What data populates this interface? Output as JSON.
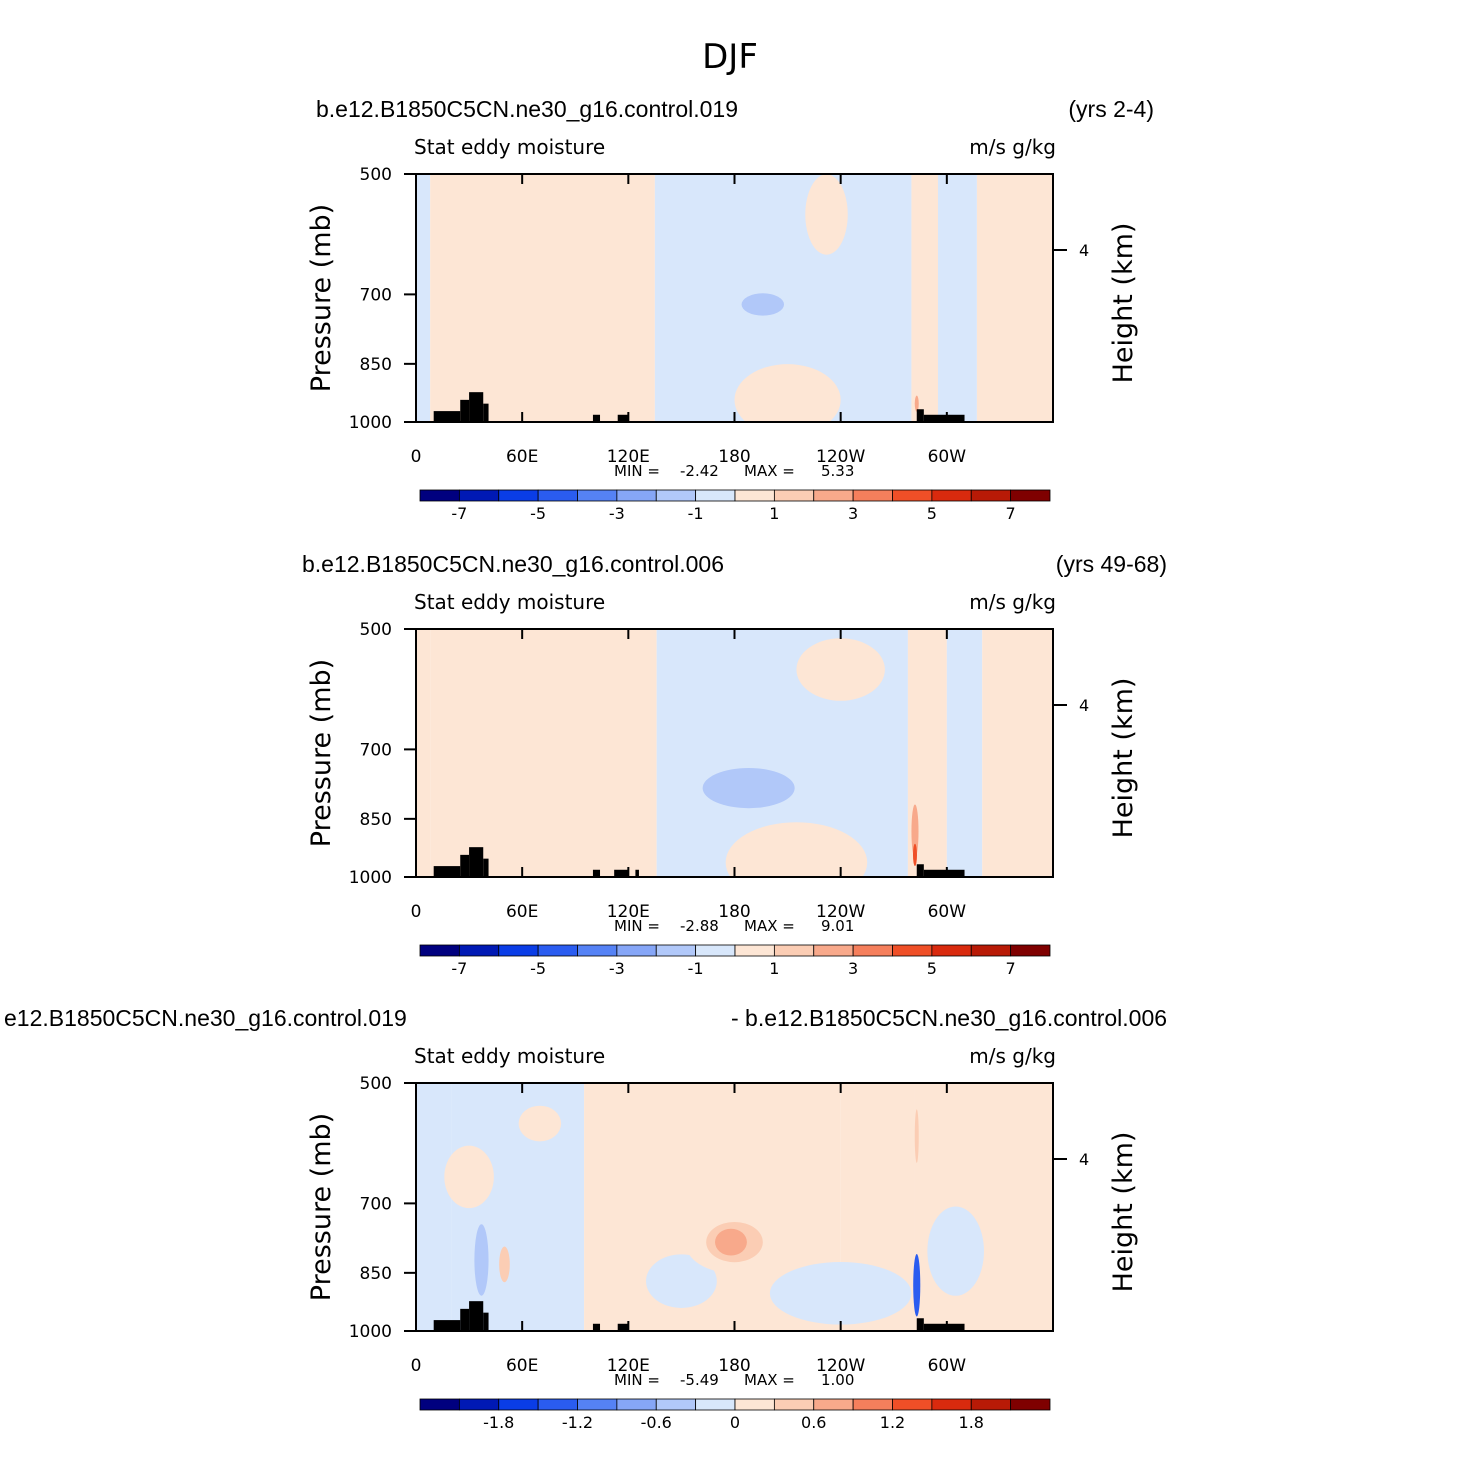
{
  "figure_title": "DJF",
  "colors": {
    "neg": [
      "#00007f",
      "#0019b4",
      "#0a3de6",
      "#2a5cf0",
      "#5582f5",
      "#86a6f7",
      "#b1c8f9",
      "#d8e7fb"
    ],
    "pos": [
      "#fde6d5",
      "#fbcdb4",
      "#f8a98b",
      "#f57f5c",
      "#ef4f27",
      "#d92a0e",
      "#b81a06",
      "#7f0000"
    ],
    "topography": "#000000"
  },
  "chart_data": [
    {
      "type": "heatmap",
      "title": "b.e12.B1850C5CN.ne30_g16.control.019",
      "years": "(yrs 2-4)",
      "variable": "Stat eddy moisture",
      "units": "m/s g/kg",
      "ylabel": "Pressure (mb)",
      "ylabel_right": "Height (km)",
      "y_ticks": [
        "500",
        "700",
        "850",
        "1000"
      ],
      "y_right_ticks": [
        "4"
      ],
      "x_ticks": [
        "0",
        "60E",
        "120E",
        "180",
        "120W",
        "60W"
      ],
      "xlim": [
        0,
        360
      ],
      "ylim": [
        1000,
        500
      ],
      "stats_min_label": "MIN =",
      "stats_min": "-2.42",
      "stats_max_label": "MAX =",
      "stats_max": "5.33",
      "colorbar_labels": [
        "-7",
        "-5",
        "-3",
        "-1",
        "1",
        "3",
        "5",
        "7"
      ],
      "field_levels_lon_to_lon": "estimated",
      "blobs": [
        {
          "lon": 28,
          "p": 700,
          "dlon": 3,
          "dp": 40,
          "level": 1
        },
        {
          "lon": 47,
          "p": 760,
          "dlon": 3,
          "dp": 60,
          "level": 1
        },
        {
          "lon": 196,
          "p": 720,
          "dlon": 12,
          "dp": 25,
          "level": -2
        },
        {
          "lon": 283,
          "p": 950,
          "dlon": 1,
          "dp": 18,
          "level": 3
        }
      ],
      "bands": [
        {
          "lon0": 0,
          "lon1": 8,
          "level": -1
        },
        {
          "lon0": 8,
          "lon1": 135,
          "level": 1
        },
        {
          "lon0": 135,
          "lon1": 280,
          "level": -1
        },
        {
          "lon0": 280,
          "lon1": 295,
          "level": 1
        },
        {
          "lon0": 295,
          "lon1": 317,
          "level": -1
        },
        {
          "lon0": 317,
          "lon1": 360,
          "level": 1
        }
      ],
      "lobes": [
        {
          "lon": 210,
          "p": 940,
          "dlon": 30,
          "dp": 80,
          "level": 1
        },
        {
          "lon": 232,
          "p": 560,
          "dlon": 12,
          "dp": 90,
          "level": 1
        }
      ],
      "topo": [
        {
          "lon0": 10,
          "lon1": 25,
          "p_top": 970
        },
        {
          "lon0": 25,
          "lon1": 30,
          "p_top": 940
        },
        {
          "lon0": 30,
          "lon1": 38,
          "p_top": 920
        },
        {
          "lon0": 38,
          "lon1": 41,
          "p_top": 950
        },
        {
          "lon0": 100,
          "lon1": 104,
          "p_top": 980
        },
        {
          "lon0": 114,
          "lon1": 120,
          "p_top": 980
        },
        {
          "lon0": 283,
          "lon1": 287,
          "p_top": 965
        },
        {
          "lon0": 287,
          "lon1": 310,
          "p_top": 980
        }
      ]
    },
    {
      "type": "heatmap",
      "title": "b.e12.B1850C5CN.ne30_g16.control.006",
      "years": "(yrs 49-68)",
      "variable": "Stat eddy moisture",
      "units": "m/s g/kg",
      "ylabel": "Pressure (mb)",
      "ylabel_right": "Height (km)",
      "y_ticks": [
        "500",
        "700",
        "850",
        "1000"
      ],
      "y_right_ticks": [
        "4"
      ],
      "x_ticks": [
        "0",
        "60E",
        "120E",
        "180",
        "120W",
        "60W"
      ],
      "xlim": [
        0,
        360
      ],
      "ylim": [
        1000,
        500
      ],
      "stats_min_label": "MIN =",
      "stats_min": "-2.88",
      "stats_max_label": "MAX =",
      "stats_max": "9.01",
      "colorbar_labels": [
        "-7",
        "-5",
        "-3",
        "-1",
        "1",
        "3",
        "5",
        "7"
      ],
      "field_levels_lon_to_lon": "estimated",
      "blobs": [
        {
          "lon": 25,
          "p": 760,
          "dlon": 3,
          "dp": 50,
          "level": 1
        },
        {
          "lon": 45,
          "p": 800,
          "dlon": 3,
          "dp": 70,
          "level": 1
        },
        {
          "lon": 188,
          "p": 780,
          "dlon": 26,
          "dp": 45,
          "level": -2
        },
        {
          "lon": 282,
          "p": 880,
          "dlon": 2,
          "dp": 60,
          "level": 3
        },
        {
          "lon": 282,
          "p": 940,
          "dlon": 1,
          "dp": 25,
          "level": 5
        }
      ],
      "bands": [
        {
          "lon0": 0,
          "lon1": 8,
          "level": 1
        },
        {
          "lon0": 8,
          "lon1": 136,
          "level": 1
        },
        {
          "lon0": 136,
          "lon1": 278,
          "level": -1
        },
        {
          "lon0": 278,
          "lon1": 300,
          "level": 1
        },
        {
          "lon0": 300,
          "lon1": 320,
          "level": -1
        },
        {
          "lon0": 320,
          "lon1": 360,
          "level": 1
        }
      ],
      "lobes": [
        {
          "lon": 215,
          "p": 960,
          "dlon": 40,
          "dp": 90,
          "level": 1
        },
        {
          "lon": 240,
          "p": 560,
          "dlon": 25,
          "dp": 70,
          "level": 1
        },
        {
          "lon": 340,
          "p": 580,
          "dlon": 14,
          "dp": 80,
          "level": 1
        }
      ],
      "topo": [
        {
          "lon0": 10,
          "lon1": 25,
          "p_top": 970
        },
        {
          "lon0": 25,
          "lon1": 30,
          "p_top": 940
        },
        {
          "lon0": 30,
          "lon1": 38,
          "p_top": 920
        },
        {
          "lon0": 38,
          "lon1": 41,
          "p_top": 950
        },
        {
          "lon0": 100,
          "lon1": 104,
          "p_top": 980
        },
        {
          "lon0": 112,
          "lon1": 120,
          "p_top": 980
        },
        {
          "lon0": 124,
          "lon1": 126,
          "p_top": 980
        },
        {
          "lon0": 283,
          "lon1": 287,
          "p_top": 965
        },
        {
          "lon0": 287,
          "lon1": 310,
          "p_top": 980
        }
      ]
    },
    {
      "type": "heatmap",
      "title": "e12.B1850C5CN.ne30_g16.control.019",
      "years": "- b.e12.B1850C5CN.ne30_g16.control.006",
      "variable": "Stat eddy moisture",
      "units": "m/s g/kg",
      "ylabel": "Pressure (mb)",
      "ylabel_right": "Height (km)",
      "y_ticks": [
        "500",
        "700",
        "850",
        "1000"
      ],
      "y_right_ticks": [
        "4"
      ],
      "x_ticks": [
        "0",
        "60E",
        "120E",
        "180",
        "120W",
        "60W"
      ],
      "xlim": [
        0,
        360
      ],
      "ylim": [
        1000,
        500
      ],
      "stats_min_label": "MIN =",
      "stats_min": "-5.49",
      "stats_max_label": "MAX =",
      "stats_max": "1.00",
      "colorbar_labels": [
        "-1.8",
        "-1.2",
        "-0.6",
        "0",
        "0.6",
        "1.2",
        "1.8"
      ],
      "field_levels_lon_to_lon": "estimated",
      "blobs": [
        {
          "lon": 180,
          "p": 780,
          "dlon": 28,
          "dp": 70,
          "level": 1
        },
        {
          "lon": 180,
          "p": 780,
          "dlon": 16,
          "dp": 45,
          "level": 2
        },
        {
          "lon": 178,
          "p": 780,
          "dlon": 9,
          "dp": 30,
          "level": 3
        },
        {
          "lon": 188,
          "p": 640,
          "dlon": 6,
          "dp": 60,
          "level": 1
        },
        {
          "lon": 37,
          "p": 820,
          "dlon": 4,
          "dp": 80,
          "level": -2
        },
        {
          "lon": 50,
          "p": 830,
          "dlon": 3,
          "dp": 40,
          "level": 2
        },
        {
          "lon": 283,
          "p": 880,
          "dlon": 2,
          "dp": 70,
          "level": -5
        },
        {
          "lon": 283,
          "p": 580,
          "dlon": 1,
          "dp": 60,
          "level": 2
        }
      ],
      "bands": [
        {
          "lon0": 0,
          "lon1": 20,
          "level": -1
        },
        {
          "lon0": 20,
          "lon1": 95,
          "level": -1
        },
        {
          "lon0": 95,
          "lon1": 240,
          "level": 1
        },
        {
          "lon0": 240,
          "lon1": 282,
          "level": 1
        },
        {
          "lon0": 282,
          "lon1": 360,
          "level": 1
        }
      ],
      "lobes": [
        {
          "lon": 30,
          "p": 650,
          "dlon": 14,
          "dp": 70,
          "level": 1
        },
        {
          "lon": 70,
          "p": 560,
          "dlon": 12,
          "dp": 40,
          "level": 1
        },
        {
          "lon": 150,
          "p": 870,
          "dlon": 20,
          "dp": 60,
          "level": -1
        },
        {
          "lon": 240,
          "p": 900,
          "dlon": 40,
          "dp": 70,
          "level": -1
        },
        {
          "lon": 305,
          "p": 800,
          "dlon": 16,
          "dp": 100,
          "level": -1
        }
      ],
      "topo": [
        {
          "lon0": 10,
          "lon1": 25,
          "p_top": 970
        },
        {
          "lon0": 25,
          "lon1": 30,
          "p_top": 940
        },
        {
          "lon0": 30,
          "lon1": 38,
          "p_top": 920
        },
        {
          "lon0": 38,
          "lon1": 41,
          "p_top": 950
        },
        {
          "lon0": 100,
          "lon1": 104,
          "p_top": 980
        },
        {
          "lon0": 114,
          "lon1": 120,
          "p_top": 980
        },
        {
          "lon0": 283,
          "lon1": 287,
          "p_top": 965
        },
        {
          "lon0": 287,
          "lon1": 310,
          "p_top": 980
        }
      ]
    }
  ]
}
